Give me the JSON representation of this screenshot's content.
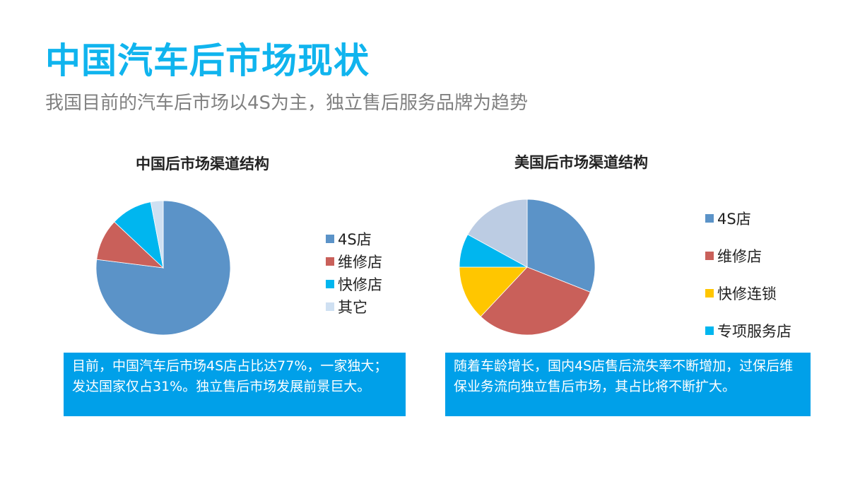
{
  "slide": {
    "title": "中国汽车后市场现状",
    "subtitle": "我国目前的汽车后市场以4S为主，独立售后服务品牌为趋势"
  },
  "colors": {
    "title": "#10b4ee",
    "note_background": "#00a0e9"
  },
  "notes": {
    "china": "目前，中国汽车后市场4S店占比达77%，一家独大；发达国家仅占31%。独立售后市场发展前景巨大。",
    "us": "随着车龄增长，国内4S店售后流失率不断增加，过保后维保业务流向独立售后市场，其占比将不断扩大。"
  },
  "chart_data": [
    {
      "type": "pie",
      "title": "中国后市场渠道结构",
      "categories": [
        "4S店",
        "维修店",
        "快修店",
        "其它"
      ],
      "values": [
        77,
        10,
        10,
        3
      ],
      "colors": [
        "#5b93c8",
        "#c9605a",
        "#00b6ef",
        "#cfe0f2"
      ],
      "legend_position": "right",
      "start_angle": 0,
      "direction": "clockwise"
    },
    {
      "type": "pie",
      "title": "美国后市场渠道结构",
      "categories": [
        "4S店",
        "维修店",
        "快修连锁",
        "专项服务店",
        ""
      ],
      "values": [
        31,
        31,
        13,
        8,
        17
      ],
      "colors": [
        "#5b93c8",
        "#c9605a",
        "#ffc600",
        "#00b6ef",
        "#bccce3"
      ],
      "legend_entries": [
        "4S店",
        "维修店",
        "快修连锁",
        "专项服务店"
      ],
      "legend_position": "right",
      "start_angle": 0,
      "direction": "clockwise"
    }
  ]
}
